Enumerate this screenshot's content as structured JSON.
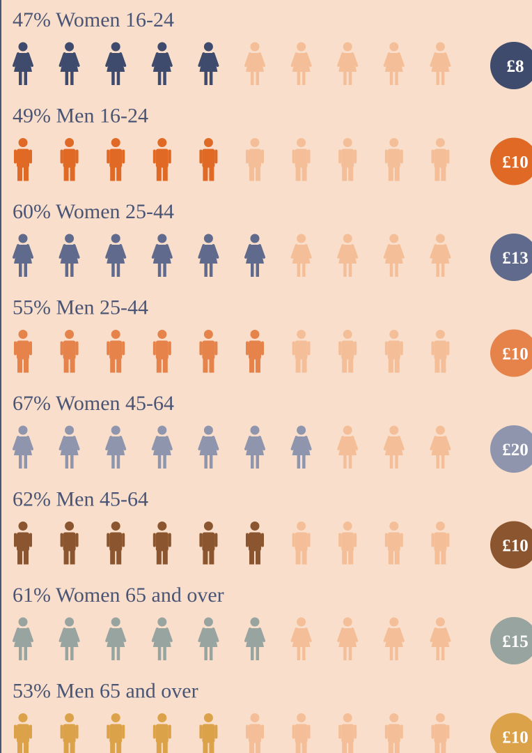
{
  "chart_data": {
    "type": "pictogram",
    "categories": [
      "Women 16-24",
      "Men 16-24",
      "Women 25-44",
      "Men 25-44",
      "Women 45-64",
      "Men 45-64",
      "Women 65 and over",
      "Men 65 and over"
    ],
    "values": [
      47,
      49,
      60,
      55,
      67,
      62,
      61,
      53
    ],
    "value_labels": [
      "47%",
      "49%",
      "60%",
      "55%",
      "67%",
      "62%",
      "61%",
      "53%"
    ],
    "colors": [
      "#3f4b6c",
      "#e06a25",
      "#5f6a8c",
      "#e5834b",
      "#8e95ad",
      "#8a552f",
      "#97a49f",
      "#dba24a"
    ],
    "empty_color": "#f4bf98",
    "amounts": [
      8,
      10,
      13,
      10,
      20,
      10,
      15,
      10
    ],
    "amount_labels": [
      "£8",
      "£10",
      "£13",
      "£10",
      "£20",
      "£10",
      "£15",
      "£10"
    ]
  }
}
